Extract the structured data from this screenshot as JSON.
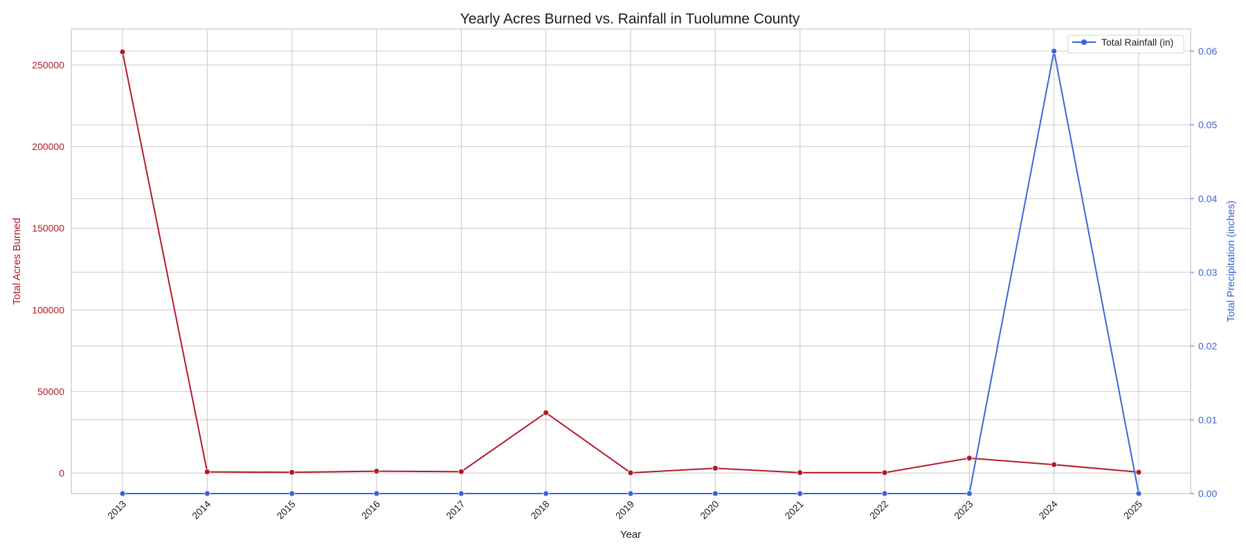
{
  "chart_data": {
    "type": "line",
    "title": "Yearly Acres Burned vs. Rainfall in Tuolumne County",
    "xlabel": "Year",
    "ylabel": "Total Acres Burned",
    "y2label": "Total Precipitation (inches)",
    "categories": [
      "2013",
      "2014",
      "2015",
      "2016",
      "2017",
      "2018",
      "2019",
      "2020",
      "2021",
      "2022",
      "2023",
      "2024",
      "2025"
    ],
    "ylim": [
      -12500,
      272000
    ],
    "y2lim": [
      0.0,
      0.063
    ],
    "yticks": [
      0,
      50000,
      100000,
      150000,
      200000,
      250000
    ],
    "y2ticks": [
      "0.00",
      "0.01",
      "0.02",
      "0.03",
      "0.04",
      "0.05",
      "0.06"
    ],
    "grid": true,
    "legend_placement": "top-right",
    "series": [
      {
        "name": "",
        "axis": "left",
        "color": "#b2182b",
        "values": [
          258000,
          800,
          500,
          1200,
          900,
          37000,
          200,
          3000,
          300,
          300,
          9200,
          5200,
          600
        ]
      },
      {
        "name": "Total Rainfall (in)",
        "axis": "right",
        "color": "#3a62d8",
        "values": [
          0,
          0,
          0,
          0,
          0,
          0,
          0,
          0,
          0,
          0,
          0,
          0.06,
          0
        ]
      }
    ]
  }
}
